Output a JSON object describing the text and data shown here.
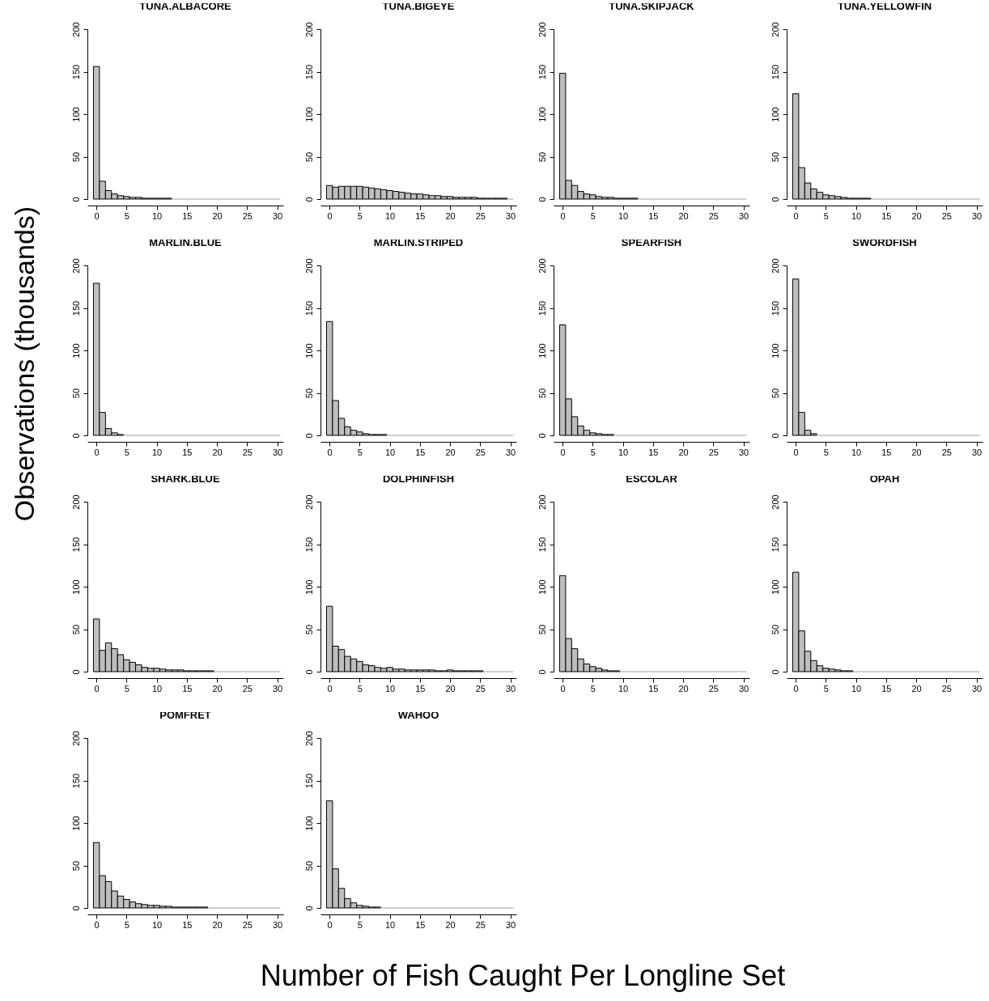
{
  "chart_data": [
    {
      "type": "histogram",
      "title": "TUNA.ALBACORE",
      "xlabel": "Number of Fish Caught Per Longline Set",
      "ylabel": "Observations (thousands)",
      "color": "#bebebe",
      "xlim": [
        -1.5,
        31
      ],
      "xticks": [
        0,
        5,
        10,
        15,
        20,
        25,
        30
      ],
      "ylim": [
        0,
        200
      ],
      "yticks": [
        0,
        50,
        100,
        150,
        200
      ],
      "bins": [
        -0.5,
        0.5,
        1.5,
        2.5,
        3.5,
        4.5,
        5.5,
        6.5,
        7.5,
        8.5,
        9.5,
        10.5,
        11.5,
        12.5,
        13.5,
        14.5,
        15.5,
        16.5,
        17.5,
        18.5,
        19.5,
        20.5,
        21.5,
        22.5,
        23.5,
        24.5,
        25.5,
        26.5,
        27.5,
        28.5,
        29.5,
        30.5
      ],
      "values": [
        156,
        21,
        10,
        6,
        4,
        3,
        2,
        2,
        1,
        1,
        1,
        1,
        1,
        0,
        0,
        0,
        0,
        0,
        0,
        0,
        0,
        0,
        0,
        0,
        0,
        0,
        0,
        0,
        0,
        0,
        0
      ]
    },
    {
      "type": "histogram",
      "title": "TUNA.BIGEYE",
      "color": "#bebebe",
      "xlim": [
        -1.5,
        31
      ],
      "xticks": [
        0,
        5,
        10,
        15,
        20,
        25,
        30
      ],
      "ylim": [
        0,
        200
      ],
      "yticks": [
        0,
        50,
        100,
        150,
        200
      ],
      "bins": [
        -0.5,
        0.5,
        1.5,
        2.5,
        3.5,
        4.5,
        5.5,
        6.5,
        7.5,
        8.5,
        9.5,
        10.5,
        11.5,
        12.5,
        13.5,
        14.5,
        15.5,
        16.5,
        17.5,
        18.5,
        19.5,
        20.5,
        21.5,
        22.5,
        23.5,
        24.5,
        25.5,
        26.5,
        27.5,
        28.5,
        29.5,
        30.5
      ],
      "values": [
        16,
        14,
        15,
        15,
        15,
        15,
        14,
        13,
        12,
        11,
        10,
        9,
        8,
        7,
        6,
        6,
        5,
        4,
        4,
        3,
        3,
        2,
        2,
        2,
        2,
        1,
        1,
        1,
        1,
        1,
        0
      ]
    },
    {
      "type": "histogram",
      "title": "TUNA.SKIPJACK",
      "color": "#bebebe",
      "xlim": [
        -1.5,
        31
      ],
      "xticks": [
        0,
        5,
        10,
        15,
        20,
        25,
        30
      ],
      "ylim": [
        0,
        200
      ],
      "yticks": [
        0,
        50,
        100,
        150,
        200
      ],
      "bins": [
        -0.5,
        0.5,
        1.5,
        2.5,
        3.5,
        4.5,
        5.5,
        6.5,
        7.5,
        8.5,
        9.5,
        10.5,
        11.5,
        12.5,
        13.5,
        14.5,
        15.5,
        16.5,
        17.5,
        18.5,
        19.5,
        20.5,
        21.5,
        22.5,
        23.5,
        24.5,
        25.5,
        26.5,
        27.5,
        28.5,
        29.5,
        30.5
      ],
      "values": [
        148,
        22,
        16,
        9,
        6,
        5,
        3,
        2,
        2,
        1,
        1,
        1,
        1,
        0,
        0,
        0,
        0,
        0,
        0,
        0,
        0,
        0,
        0,
        0,
        0,
        0,
        0,
        0,
        0,
        0,
        0
      ]
    },
    {
      "type": "histogram",
      "title": "TUNA.YELLOWFIN",
      "color": "#bebebe",
      "xlim": [
        -1.5,
        31
      ],
      "xticks": [
        0,
        5,
        10,
        15,
        20,
        25,
        30
      ],
      "ylim": [
        0,
        200
      ],
      "yticks": [
        0,
        50,
        100,
        150,
        200
      ],
      "bins": [
        -0.5,
        0.5,
        1.5,
        2.5,
        3.5,
        4.5,
        5.5,
        6.5,
        7.5,
        8.5,
        9.5,
        10.5,
        11.5,
        12.5,
        13.5,
        14.5,
        15.5,
        16.5,
        17.5,
        18.5,
        19.5,
        20.5,
        21.5,
        22.5,
        23.5,
        24.5,
        25.5,
        26.5,
        27.5,
        28.5,
        29.5,
        30.5
      ],
      "values": [
        124,
        37,
        19,
        12,
        8,
        5,
        4,
        3,
        2,
        1,
        1,
        1,
        1,
        0,
        0,
        0,
        0,
        0,
        0,
        0,
        0,
        0,
        0,
        0,
        0,
        0,
        0,
        0,
        0,
        0,
        0
      ]
    },
    {
      "type": "histogram",
      "title": "MARLIN.BLUE",
      "color": "#bebebe",
      "xlim": [
        -1.5,
        31
      ],
      "xticks": [
        0,
        5,
        10,
        15,
        20,
        25,
        30
      ],
      "ylim": [
        0,
        200
      ],
      "yticks": [
        0,
        50,
        100,
        150,
        200
      ],
      "bins": [
        -0.5,
        0.5,
        1.5,
        2.5,
        3.5,
        4.5,
        5.5,
        6.5,
        7.5,
        8.5,
        9.5,
        10.5,
        11.5,
        12.5,
        13.5,
        14.5,
        15.5,
        16.5,
        17.5,
        18.5,
        19.5,
        20.5,
        21.5,
        22.5,
        23.5,
        24.5,
        25.5,
        26.5,
        27.5,
        28.5,
        29.5,
        30.5
      ],
      "values": [
        179,
        27,
        8,
        3,
        1,
        0,
        0,
        0,
        0,
        0,
        0,
        0,
        0,
        0,
        0,
        0,
        0,
        0,
        0,
        0,
        0,
        0,
        0,
        0,
        0,
        0,
        0,
        0,
        0,
        0,
        0
      ]
    },
    {
      "type": "histogram",
      "title": "MARLIN.STRIPED",
      "color": "#bebebe",
      "xlim": [
        -1.5,
        31
      ],
      "xticks": [
        0,
        5,
        10,
        15,
        20,
        25,
        30
      ],
      "ylim": [
        0,
        200
      ],
      "yticks": [
        0,
        50,
        100,
        150,
        200
      ],
      "bins": [
        -0.5,
        0.5,
        1.5,
        2.5,
        3.5,
        4.5,
        5.5,
        6.5,
        7.5,
        8.5,
        9.5,
        10.5,
        11.5,
        12.5,
        13.5,
        14.5,
        15.5,
        16.5,
        17.5,
        18.5,
        19.5,
        20.5,
        21.5,
        22.5,
        23.5,
        24.5,
        25.5,
        26.5,
        27.5,
        28.5,
        29.5,
        30.5
      ],
      "values": [
        134,
        41,
        20,
        10,
        6,
        4,
        2,
        1,
        1,
        1,
        0,
        0,
        0,
        0,
        0,
        0,
        0,
        0,
        0,
        0,
        0,
        0,
        0,
        0,
        0,
        0,
        0,
        0,
        0,
        0,
        0
      ]
    },
    {
      "type": "histogram",
      "title": "SPEARFISH",
      "color": "#bebebe",
      "xlim": [
        -1.5,
        31
      ],
      "xticks": [
        0,
        5,
        10,
        15,
        20,
        25,
        30
      ],
      "ylim": [
        0,
        200
      ],
      "yticks": [
        0,
        50,
        100,
        150,
        200
      ],
      "bins": [
        -0.5,
        0.5,
        1.5,
        2.5,
        3.5,
        4.5,
        5.5,
        6.5,
        7.5,
        8.5,
        9.5,
        10.5,
        11.5,
        12.5,
        13.5,
        14.5,
        15.5,
        16.5,
        17.5,
        18.5,
        19.5,
        20.5,
        21.5,
        22.5,
        23.5,
        24.5,
        25.5,
        26.5,
        27.5,
        28.5,
        29.5,
        30.5
      ],
      "values": [
        130,
        43,
        22,
        11,
        6,
        3,
        2,
        1,
        1,
        0,
        0,
        0,
        0,
        0,
        0,
        0,
        0,
        0,
        0,
        0,
        0,
        0,
        0,
        0,
        0,
        0,
        0,
        0,
        0,
        0,
        0
      ]
    },
    {
      "type": "histogram",
      "title": "SWORDFISH",
      "color": "#bebebe",
      "xlim": [
        -1.5,
        31
      ],
      "xticks": [
        0,
        5,
        10,
        15,
        20,
        25,
        30
      ],
      "ylim": [
        0,
        200
      ],
      "yticks": [
        0,
        50,
        100,
        150,
        200
      ],
      "bins": [
        -0.5,
        0.5,
        1.5,
        2.5,
        3.5,
        4.5,
        5.5,
        6.5,
        7.5,
        8.5,
        9.5,
        10.5,
        11.5,
        12.5,
        13.5,
        14.5,
        15.5,
        16.5,
        17.5,
        18.5,
        19.5,
        20.5,
        21.5,
        22.5,
        23.5,
        24.5,
        25.5,
        26.5,
        27.5,
        28.5,
        29.5,
        30.5
      ],
      "values": [
        184,
        27,
        6,
        2,
        0,
        0,
        0,
        0,
        0,
        0,
        0,
        0,
        0,
        0,
        0,
        0,
        0,
        0,
        0,
        0,
        0,
        0,
        0,
        0,
        0,
        0,
        0,
        0,
        0,
        0,
        0
      ]
    },
    {
      "type": "histogram",
      "title": "SHARK.BLUE",
      "color": "#bebebe",
      "xlim": [
        -1.5,
        31
      ],
      "xticks": [
        0,
        5,
        10,
        15,
        20,
        25,
        30
      ],
      "ylim": [
        0,
        200
      ],
      "yticks": [
        0,
        50,
        100,
        150,
        200
      ],
      "bins": [
        -0.5,
        0.5,
        1.5,
        2.5,
        3.5,
        4.5,
        5.5,
        6.5,
        7.5,
        8.5,
        9.5,
        10.5,
        11.5,
        12.5,
        13.5,
        14.5,
        15.5,
        16.5,
        17.5,
        18.5,
        19.5,
        20.5,
        21.5,
        22.5,
        23.5,
        24.5,
        25.5,
        26.5,
        27.5,
        28.5,
        29.5,
        30.5
      ],
      "values": [
        62,
        25,
        34,
        27,
        20,
        14,
        11,
        8,
        5,
        4,
        4,
        3,
        2,
        2,
        2,
        1,
        1,
        1,
        1,
        1,
        0,
        0,
        0,
        0,
        0,
        0,
        0,
        0,
        0,
        0,
        0
      ]
    },
    {
      "type": "histogram",
      "title": "DOLPHINFISH",
      "color": "#bebebe",
      "xlim": [
        -1.5,
        31
      ],
      "xticks": [
        0,
        5,
        10,
        15,
        20,
        25,
        30
      ],
      "ylim": [
        0,
        200
      ],
      "yticks": [
        0,
        50,
        100,
        150,
        200
      ],
      "bins": [
        -0.5,
        0.5,
        1.5,
        2.5,
        3.5,
        4.5,
        5.5,
        6.5,
        7.5,
        8.5,
        9.5,
        10.5,
        11.5,
        12.5,
        13.5,
        14.5,
        15.5,
        16.5,
        17.5,
        18.5,
        19.5,
        20.5,
        21.5,
        22.5,
        23.5,
        24.5,
        25.5,
        26.5,
        27.5,
        28.5,
        29.5,
        30.5
      ],
      "values": [
        77,
        30,
        26,
        18,
        15,
        12,
        8,
        7,
        5,
        4,
        5,
        3,
        3,
        2,
        2,
        2,
        2,
        2,
        1,
        1,
        2,
        1,
        1,
        1,
        1,
        1,
        0,
        0,
        0,
        0,
        0
      ]
    },
    {
      "type": "histogram",
      "title": "ESCOLAR",
      "color": "#bebebe",
      "xlim": [
        -1.5,
        31
      ],
      "xticks": [
        0,
        5,
        10,
        15,
        20,
        25,
        30
      ],
      "ylim": [
        0,
        200
      ],
      "yticks": [
        0,
        50,
        100,
        150,
        200
      ],
      "bins": [
        -0.5,
        0.5,
        1.5,
        2.5,
        3.5,
        4.5,
        5.5,
        6.5,
        7.5,
        8.5,
        9.5,
        10.5,
        11.5,
        12.5,
        13.5,
        14.5,
        15.5,
        16.5,
        17.5,
        18.5,
        19.5,
        20.5,
        21.5,
        22.5,
        23.5,
        24.5,
        25.5,
        26.5,
        27.5,
        28.5,
        29.5,
        30.5
      ],
      "values": [
        113,
        39,
        27,
        15,
        9,
        6,
        4,
        2,
        1,
        1,
        0,
        0,
        0,
        0,
        0,
        0,
        0,
        0,
        0,
        0,
        0,
        0,
        0,
        0,
        0,
        0,
        0,
        0,
        0,
        0,
        0
      ]
    },
    {
      "type": "histogram",
      "title": "OPAH",
      "color": "#bebebe",
      "xlim": [
        -1.5,
        31
      ],
      "xticks": [
        0,
        5,
        10,
        15,
        20,
        25,
        30
      ],
      "ylim": [
        0,
        200
      ],
      "yticks": [
        0,
        50,
        100,
        150,
        200
      ],
      "bins": [
        -0.5,
        0.5,
        1.5,
        2.5,
        3.5,
        4.5,
        5.5,
        6.5,
        7.5,
        8.5,
        9.5,
        10.5,
        11.5,
        12.5,
        13.5,
        14.5,
        15.5,
        16.5,
        17.5,
        18.5,
        19.5,
        20.5,
        21.5,
        22.5,
        23.5,
        24.5,
        25.5,
        26.5,
        27.5,
        28.5,
        29.5,
        30.5
      ],
      "values": [
        117,
        48,
        24,
        13,
        7,
        4,
        3,
        2,
        1,
        1,
        0,
        0,
        0,
        0,
        0,
        0,
        0,
        0,
        0,
        0,
        0,
        0,
        0,
        0,
        0,
        0,
        0,
        0,
        0,
        0,
        0
      ]
    },
    {
      "type": "histogram",
      "title": "POMFRET",
      "color": "#bebebe",
      "xlim": [
        -1.5,
        31
      ],
      "xticks": [
        0,
        5,
        10,
        15,
        20,
        25,
        30
      ],
      "ylim": [
        0,
        200
      ],
      "yticks": [
        0,
        50,
        100,
        150,
        200
      ],
      "bins": [
        -0.5,
        0.5,
        1.5,
        2.5,
        3.5,
        4.5,
        5.5,
        6.5,
        7.5,
        8.5,
        9.5,
        10.5,
        11.5,
        12.5,
        13.5,
        14.5,
        15.5,
        16.5,
        17.5,
        18.5,
        19.5,
        20.5,
        21.5,
        22.5,
        23.5,
        24.5,
        25.5,
        26.5,
        27.5,
        28.5,
        29.5,
        30.5
      ],
      "values": [
        77,
        38,
        31,
        20,
        14,
        10,
        7,
        5,
        4,
        3,
        3,
        2,
        2,
        1,
        1,
        1,
        1,
        1,
        1,
        0,
        0,
        0,
        0,
        0,
        0,
        0,
        0,
        0,
        0,
        0,
        0
      ]
    },
    {
      "type": "histogram",
      "title": "WAHOO",
      "color": "#bebebe",
      "xlim": [
        -1.5,
        31
      ],
      "xticks": [
        0,
        5,
        10,
        15,
        20,
        25,
        30
      ],
      "ylim": [
        0,
        200
      ],
      "yticks": [
        0,
        50,
        100,
        150,
        200
      ],
      "bins": [
        -0.5,
        0.5,
        1.5,
        2.5,
        3.5,
        4.5,
        5.5,
        6.5,
        7.5,
        8.5,
        9.5,
        10.5,
        11.5,
        12.5,
        13.5,
        14.5,
        15.5,
        16.5,
        17.5,
        18.5,
        19.5,
        20.5,
        21.5,
        22.5,
        23.5,
        24.5,
        25.5,
        26.5,
        27.5,
        28.5,
        29.5,
        30.5
      ],
      "values": [
        126,
        46,
        23,
        11,
        6,
        3,
        2,
        1,
        1,
        0,
        0,
        0,
        0,
        0,
        0,
        0,
        0,
        0,
        0,
        0,
        0,
        0,
        0,
        0,
        0,
        0,
        0,
        0,
        0,
        0,
        0
      ]
    }
  ]
}
